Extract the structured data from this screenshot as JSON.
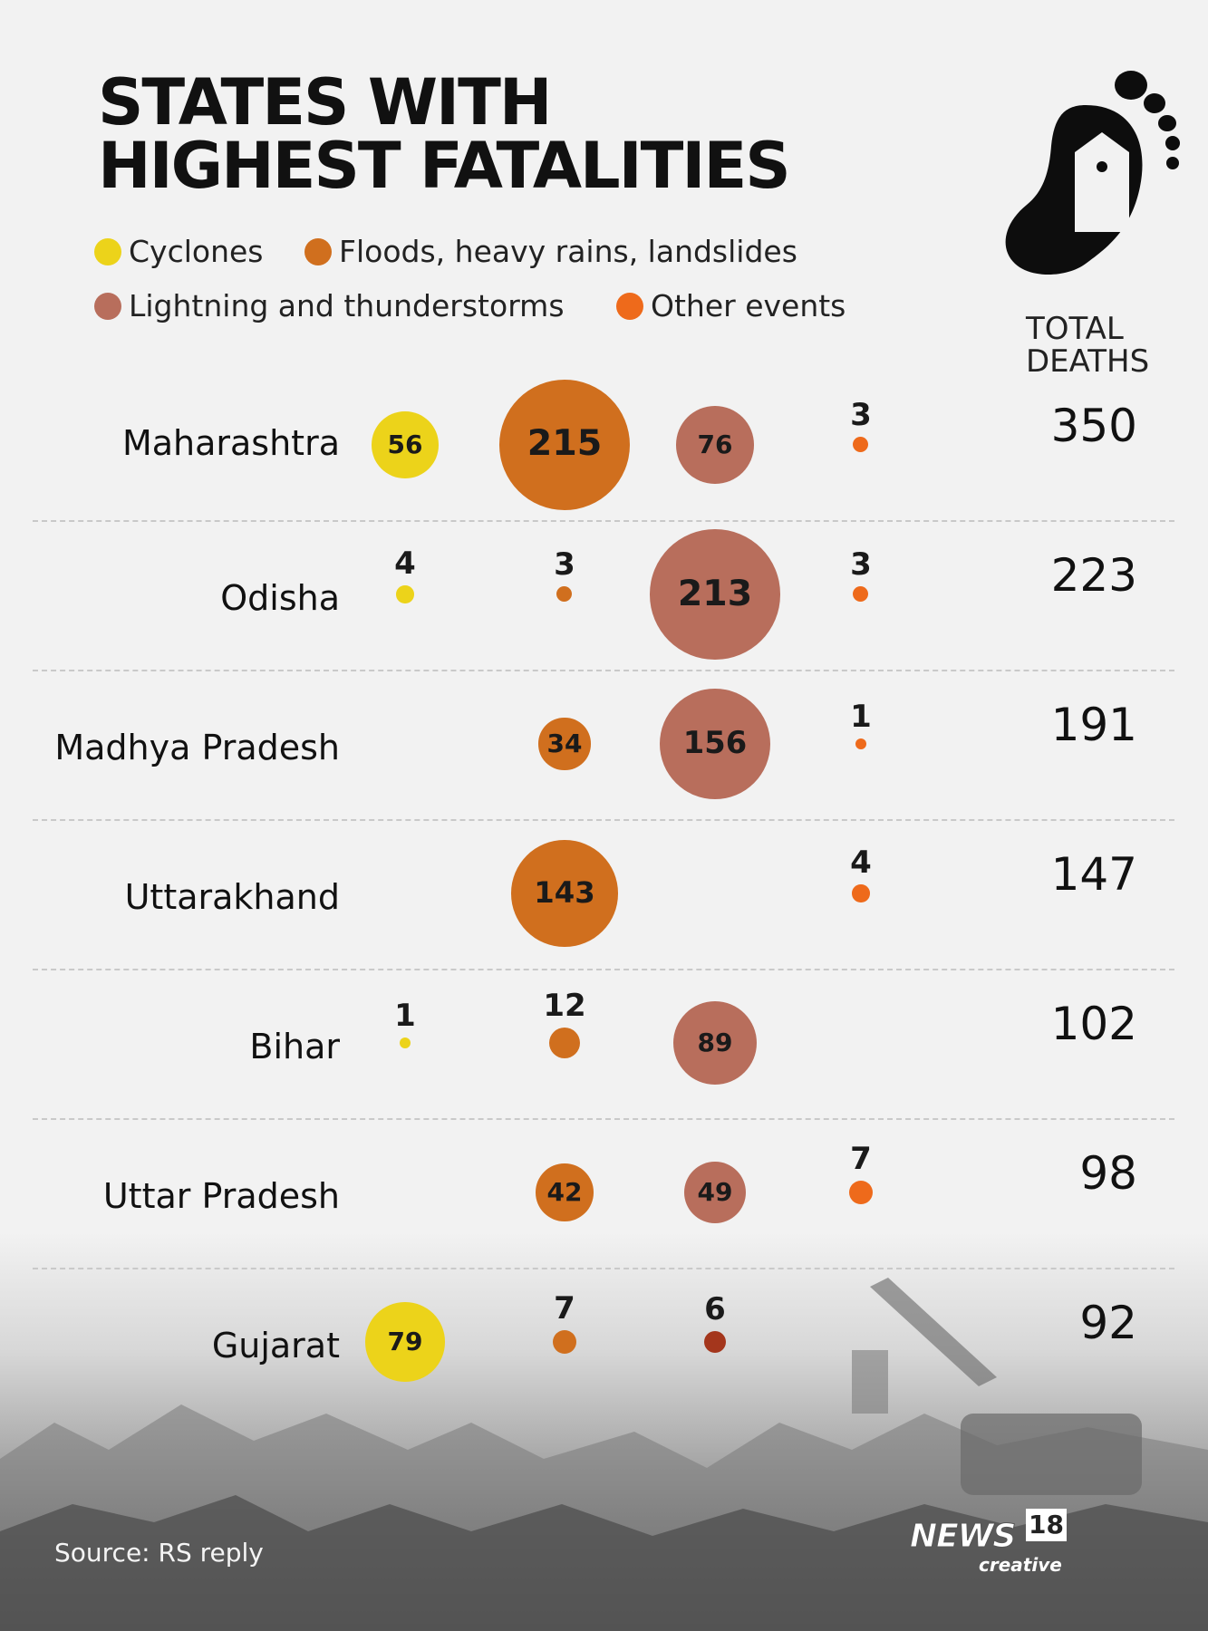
{
  "header": {
    "title_line1": "STATES WITH",
    "title_line2": "HIGHEST FATALITIES",
    "total_heading_line1": "TOTAL",
    "total_heading_line2": "DEATHS"
  },
  "icons": {
    "header_icon": "footprint-house-icon"
  },
  "colors": {
    "cyclones": "#ecd31a",
    "floods": "#d06f1e",
    "lightning": "#b86e5c",
    "other": "#ee6a1b",
    "lightning_small": "#a4361c"
  },
  "chart_data": {
    "type": "bubble",
    "title": "STATES WITH HIGHEST FATALITIES",
    "categories": [
      "Maharashtra",
      "Odisha",
      "Madhya Pradesh",
      "Uttarakhand",
      "Bihar",
      "Uttar Pradesh",
      "Gujarat"
    ],
    "series": [
      {
        "name": "Cyclones",
        "values": [
          56,
          4,
          null,
          null,
          1,
          null,
          79
        ]
      },
      {
        "name": "Floods, heavy rains, landslides",
        "values": [
          215,
          3,
          34,
          143,
          12,
          42,
          7
        ]
      },
      {
        "name": "Lightning and thunderstorms",
        "values": [
          76,
          213,
          156,
          null,
          89,
          49,
          6
        ]
      },
      {
        "name": "Other events",
        "values": [
          3,
          3,
          1,
          4,
          null,
          7,
          null
        ]
      }
    ],
    "totals_label": "TOTAL DEATHS",
    "totals": [
      350,
      223,
      191,
      147,
      102,
      98,
      92
    ],
    "legend_position": "top-left"
  },
  "footer": {
    "source": "Source: RS reply",
    "logo_main": "NEWS",
    "logo_num": "18",
    "logo_sub": "creative"
  }
}
